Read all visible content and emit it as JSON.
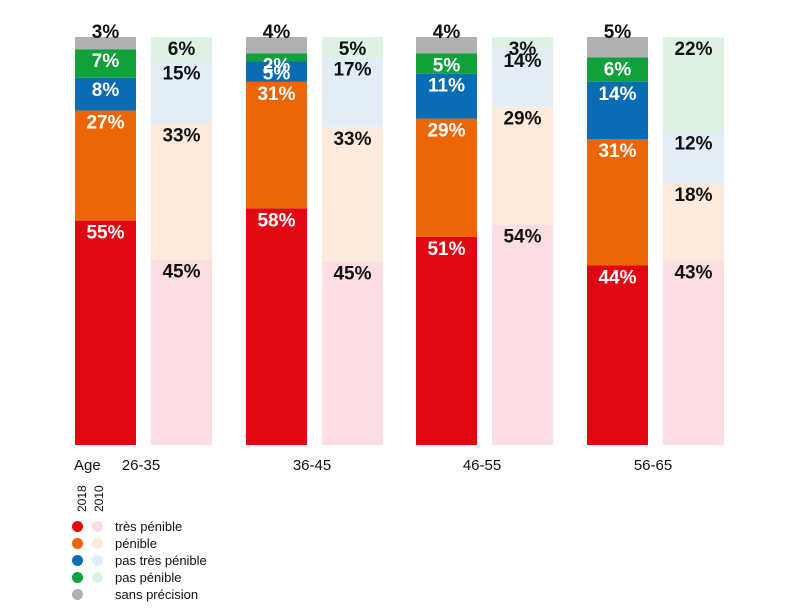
{
  "chart_data": {
    "type": "bar",
    "stacked": true,
    "age_label": "Age",
    "categories": [
      "26-35",
      "36-45",
      "46-55",
      "56-65"
    ],
    "years": [
      "2018",
      "2010"
    ],
    "segments": [
      "très pénible",
      "pénible",
      "pas très pénible",
      "pas pénible",
      "sans précision"
    ],
    "colors": {
      "2018": [
        "#e30613",
        "#ec6608",
        "#0a6cb5",
        "#10a13a",
        "#b0b0b0"
      ],
      "2010": [
        "#fbdde2",
        "#fcebdc",
        "#e2edf7",
        "#def2e3",
        "#b0b0b0"
      ]
    },
    "values": {
      "2018": [
        [
          55,
          27,
          8,
          7,
          3
        ],
        [
          58,
          31,
          5,
          2,
          4
        ],
        [
          51,
          29,
          11,
          5,
          4
        ],
        [
          44,
          31,
          14,
          6,
          5
        ]
      ],
      "2010": [
        [
          45,
          33,
          15,
          6,
          0
        ],
        [
          45,
          33,
          17,
          5,
          0
        ],
        [
          54,
          29,
          14,
          3,
          0
        ],
        [
          43,
          18,
          12,
          22,
          0
        ]
      ]
    },
    "labels": {
      "2018": [
        [
          "55%",
          "27%",
          "8%",
          "7%",
          "3%"
        ],
        [
          "58%",
          "31%",
          "5%",
          "2%",
          "4%"
        ],
        [
          "51%",
          "29%",
          "11%",
          "5%",
          "4%"
        ],
        [
          "44%",
          "31%",
          "14%",
          "6%",
          "5%"
        ]
      ],
      "2010": [
        [
          "45%",
          "33%",
          "15%",
          "6%",
          ""
        ],
        [
          "45%",
          "33%",
          "17%",
          "5%",
          ""
        ],
        [
          "54%",
          "29%",
          "14%",
          "3%",
          ""
        ],
        [
          "43%",
          "18%",
          "12%",
          "22%",
          ""
        ]
      ]
    },
    "ylim": [
      0,
      100
    ]
  },
  "legend": {
    "items": [
      {
        "label": "très pénible",
        "c2018": "#e30613",
        "c2010": "#fbdde2"
      },
      {
        "label": "pénible",
        "c2018": "#ec6608",
        "c2010": "#fcebdc"
      },
      {
        "label": "pas très pénible",
        "c2018": "#0a6cb5",
        "c2010": "#e2edf7"
      },
      {
        "label": "pas pénible",
        "c2018": "#10a13a",
        "c2010": "#def2e3"
      },
      {
        "label": "sans précision",
        "c2018": "#b0b0b0",
        "c2010": ""
      }
    ]
  }
}
